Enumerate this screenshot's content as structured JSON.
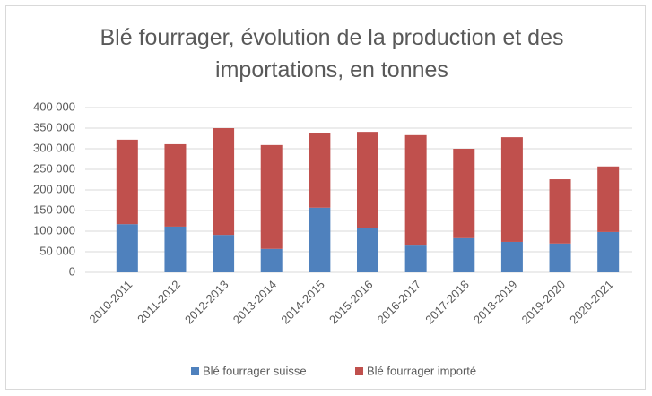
{
  "chart_data": {
    "type": "stacked_bar",
    "title": "Blé fourrager, évolution de la production et des importations, en tonnes",
    "categories": [
      "2010-2011",
      "2011-2012",
      "2012-2013",
      "2013-2014",
      "2014-2015",
      "2015-2016",
      "2016-2017",
      "2017-2018",
      "2018-2019",
      "2019-2020",
      "2020-2021"
    ],
    "series": [
      {
        "name": "Blé fourrager suisse",
        "color": "#4f81bd",
        "values": [
          117000,
          111000,
          91000,
          57000,
          157000,
          107000,
          65000,
          83000,
          74000,
          70000,
          98000
        ]
      },
      {
        "name": "Blé fourrager importé",
        "color": "#c0504d",
        "values": [
          205000,
          200000,
          259000,
          252000,
          180000,
          234000,
          268000,
          217000,
          254000,
          156000,
          159000
        ]
      }
    ],
    "ylim": [
      0,
      400000
    ],
    "yticks": [
      0,
      {
        "value": 50000,
        "label": "50 000"
      },
      {
        "value": 100000,
        "label": "100 000"
      },
      {
        "value": 150000,
        "label": "150 000"
      },
      {
        "value": 200000,
        "label": "200 000"
      },
      {
        "value": 250000,
        "label": "250 000"
      },
      {
        "value": 300000,
        "label": "300 000"
      },
      {
        "value": 350000,
        "label": "350 000"
      },
      {
        "value": 400000,
        "label": "400 000"
      }
    ],
    "grid": true,
    "legend": "bottom"
  }
}
